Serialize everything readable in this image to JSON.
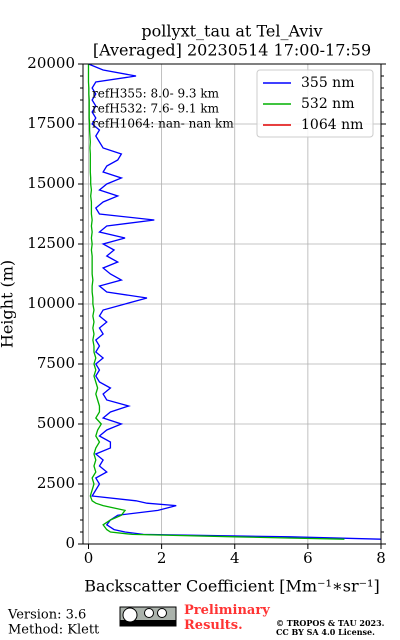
{
  "chart_data": {
    "type": "line",
    "title": "pollyxt_tau at Tel_Aviv",
    "subtitle": "[Averaged] 20230514 17:00-17:59",
    "xlabel": "Backscatter Coefficient [Mm⁻¹∗sr⁻¹]",
    "ylabel": "Height (m)",
    "xlim": [
      -0.15,
      8
    ],
    "xticks": [
      0,
      2,
      4,
      6,
      8
    ],
    "ylim": [
      0,
      20000
    ],
    "yticks": [
      0,
      2500,
      5000,
      7500,
      10000,
      12500,
      15000,
      17500,
      20000
    ],
    "grid": true,
    "legend": "upper right",
    "y": [
      200,
      300,
      400,
      500,
      600,
      800,
      1000,
      1200,
      1400,
      1600,
      1700,
      1800,
      2000,
      2250,
      2500,
      2750,
      3000,
      3250,
      3500,
      3750,
      4000,
      4250,
      4500,
      4750,
      5000,
      5250,
      5500,
      5750,
      6000,
      6250,
      6500,
      6750,
      7000,
      7250,
      7500,
      7750,
      8000,
      8250,
      8500,
      8750,
      9000,
      9250,
      9500,
      9750,
      10000,
      10250,
      10500,
      10750,
      11000,
      11250,
      11500,
      11750,
      12000,
      12250,
      12500,
      12750,
      13000,
      13250,
      13500,
      13750,
      14000,
      14250,
      14500,
      14750,
      15000,
      15250,
      15500,
      15750,
      16000,
      16250,
      16500,
      16750,
      17000,
      17250,
      17500,
      17750,
      18000,
      18250,
      18500,
      18750,
      19000,
      19250,
      19500,
      19750,
      20000
    ],
    "series": [
      {
        "name": "355 nm",
        "color": "#0000ff",
        "values": [
          8.0,
          5.5,
          1.5,
          1.0,
          0.7,
          0.5,
          0.6,
          0.8,
          1.9,
          2.4,
          1.6,
          1.3,
          0.1,
          0.2,
          0.3,
          0.2,
          0.5,
          0.3,
          0.4,
          0.2,
          0.6,
          0.6,
          0.3,
          0.5,
          0.9,
          0.4,
          0.6,
          1.1,
          0.5,
          0.4,
          0.6,
          0.3,
          0.2,
          0.3,
          0.2,
          0.4,
          0.2,
          0.3,
          0.2,
          0.4,
          0.3,
          0.5,
          0.3,
          0.4,
          1.0,
          1.6,
          0.5,
          0.3,
          0.9,
          0.6,
          0.4,
          0.8,
          0.5,
          0.7,
          0.4,
          1.0,
          0.3,
          0.5,
          1.8,
          0.3,
          0.2,
          0.4,
          0.8,
          0.3,
          0.5,
          0.9,
          0.4,
          0.5,
          0.8,
          0.9,
          0.4,
          0.3,
          0.2,
          0.3,
          0.1,
          0.2,
          0.1,
          0.2,
          0.1,
          0.2,
          0.1,
          0.2,
          1.3,
          0.4,
          0.0
        ]
      },
      {
        "name": "532 nm",
        "color": "#00b000",
        "values": [
          7.0,
          4.0,
          1.2,
          0.6,
          0.5,
          0.4,
          0.6,
          0.9,
          1.0,
          0.4,
          0.2,
          0.1,
          0.05,
          0.1,
          0.15,
          0.1,
          0.2,
          0.15,
          0.2,
          0.15,
          0.2,
          0.3,
          0.2,
          0.25,
          0.35,
          0.2,
          0.3,
          0.3,
          0.25,
          0.2,
          0.25,
          0.2,
          0.15,
          0.2,
          0.15,
          0.2,
          0.15,
          0.15,
          0.12,
          0.15,
          0.12,
          0.15,
          0.12,
          0.15,
          0.12,
          0.12,
          0.1,
          0.1,
          0.12,
          0.1,
          0.1,
          0.1,
          0.1,
          0.08,
          0.1,
          0.08,
          0.1,
          0.08,
          0.1,
          0.08,
          0.08,
          0.08,
          0.06,
          0.08,
          0.06,
          0.06,
          0.05,
          0.05,
          0.05,
          0.05,
          0.04,
          0.05,
          0.04,
          0.03,
          0.03,
          0.02,
          0.02,
          0.02,
          0.02,
          0.01,
          0.01,
          0.0,
          0.0,
          0.0,
          0.0
        ]
      },
      {
        "name": "1064 nm",
        "color": "#e00000",
        "values": [
          null,
          null,
          null,
          null,
          null,
          null,
          null,
          null,
          null,
          null,
          null,
          null,
          null,
          null,
          null,
          null,
          null,
          null,
          null,
          null,
          null,
          null,
          null,
          null,
          null,
          null,
          null,
          null,
          null,
          null,
          null,
          null,
          null,
          null,
          null,
          null,
          null,
          null,
          null,
          null,
          null,
          null,
          null,
          null,
          null,
          null,
          null,
          null,
          null,
          null,
          null,
          null,
          null,
          null,
          null,
          null,
          null,
          null,
          null,
          null,
          null,
          null,
          null,
          null,
          null,
          null,
          null,
          null,
          null,
          null,
          null,
          null,
          null,
          null,
          null,
          null,
          null,
          null,
          null,
          null,
          null,
          null,
          null,
          null,
          null
        ]
      }
    ],
    "annotations": [
      "refH355:  8.0- 9.3 km",
      "refH532:  7.6- 9.1 km",
      "refH1064:  nan- nan km"
    ]
  },
  "footer": {
    "version": "Version: 3.6",
    "method": "Method: Klett",
    "status": "Preliminary Results.",
    "copyright": "© TROPOS & TAU 2023.",
    "license": "CC BY SA 4.0 License."
  }
}
